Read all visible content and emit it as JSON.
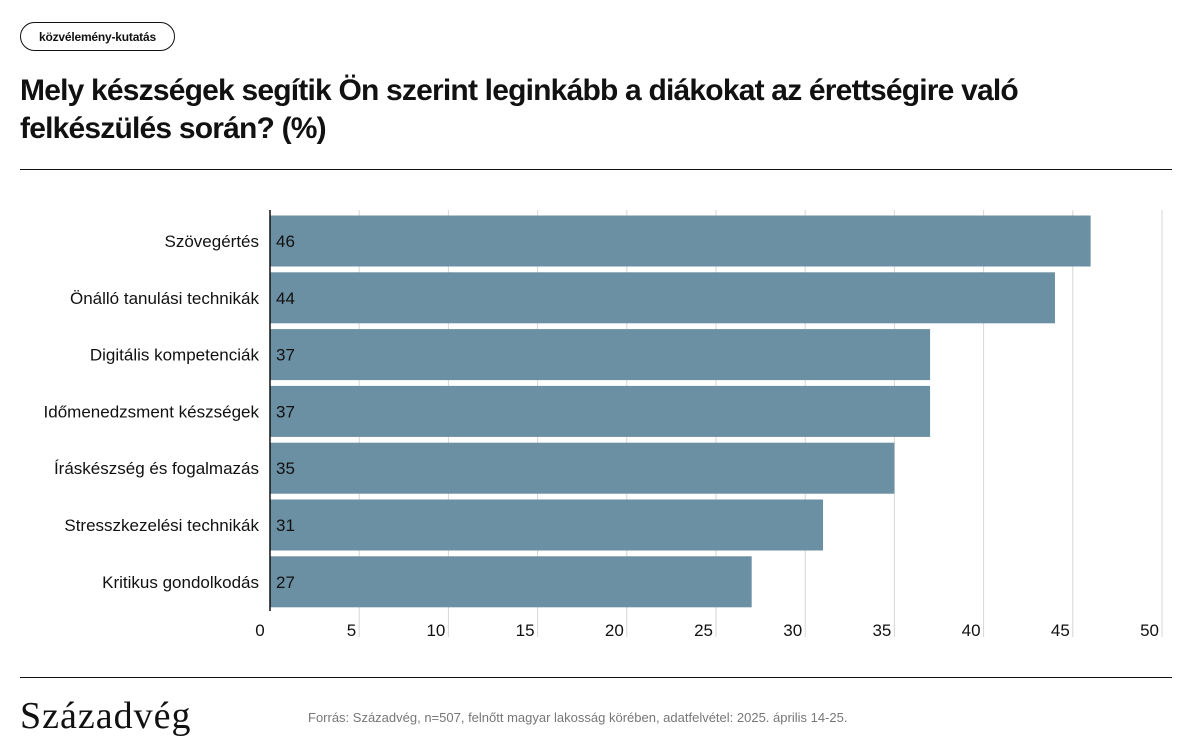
{
  "tag": "közvélemény-kutatás",
  "chart_data": {
    "type": "bar",
    "orientation": "horizontal",
    "title": "Mely készségek segítik Ön szerint leginkább a diákokat az érettségire való felkészülés során? (%)",
    "categories": [
      "Szövegértés",
      "Önálló tanulási technikák",
      "Digitális kompetenciák",
      "Időmenedzsment készségek",
      "Íráskészség és fogalmazás",
      "Stresszkezelési technikák",
      "Kritikus gondolkodás"
    ],
    "values": [
      46,
      44,
      37,
      37,
      35,
      31,
      27
    ],
    "data_labels": [
      "46",
      "44",
      "37",
      "37",
      "35",
      "31",
      "27"
    ],
    "xlim": [
      0,
      50
    ],
    "xticks": [
      "0",
      "5",
      "10",
      "15",
      "20",
      "25",
      "30",
      "35",
      "40",
      "45",
      "50"
    ],
    "grid": true,
    "bar_color": "#6b8fa3"
  },
  "footer": {
    "logo": "Századvég",
    "source": "Forrás: Századvég, n=507, felnőtt magyar lakosság körében, adatfelvétel: 2025. április 14-25."
  }
}
